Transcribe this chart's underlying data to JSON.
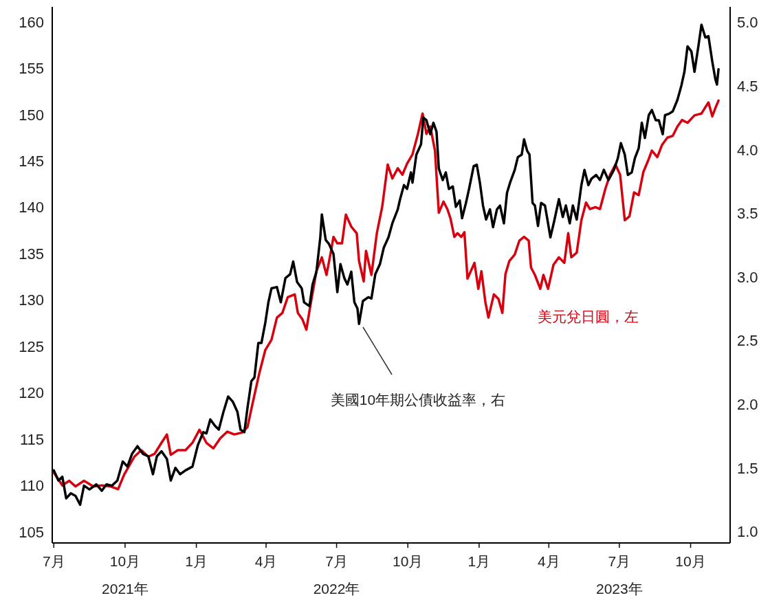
{
  "chart_data": {
    "type": "line",
    "xlim": [
      "2021-06-29",
      "2023-11-21"
    ],
    "xticks": [
      {
        "value": "2021-07-01",
        "label": "7月"
      },
      {
        "value": "2021-10-01",
        "label": "10月\n2021年"
      },
      {
        "value": "2022-01-01",
        "label": "1月"
      },
      {
        "value": "2022-04-01",
        "label": "4月"
      },
      {
        "value": "2022-07-01",
        "label": "7月\n2022年"
      },
      {
        "value": "2022-10-01",
        "label": "10月"
      },
      {
        "value": "2023-01-01",
        "label": "1月"
      },
      {
        "value": "2023-04-01",
        "label": "4月"
      },
      {
        "value": "2023-07-01",
        "label": "7月\n2023年"
      },
      {
        "value": "2023-10-01",
        "label": "10月"
      }
    ],
    "ylim": [
      103.8,
      161.6
    ],
    "yticks": [
      105,
      110,
      115,
      120,
      125,
      130,
      135,
      140,
      145,
      150,
      155,
      160
    ],
    "y2lim": [
      0.91,
      5.12
    ],
    "y2ticks": [
      {
        "value": 1,
        "label": "1.0"
      },
      {
        "value": 1.5,
        "label": "1.5"
      },
      {
        "value": 2,
        "label": "2.0"
      },
      {
        "value": 2.5,
        "label": "2.5"
      },
      {
        "value": 3,
        "label": "3.0"
      },
      {
        "value": 3.5,
        "label": "3.5"
      },
      {
        "value": 4,
        "label": "4.0"
      },
      {
        "value": 4.5,
        "label": "4.5"
      },
      {
        "value": 5,
        "label": "5.0"
      }
    ],
    "line_style": "solid",
    "series": [
      {
        "name": "美元兌日圓，左",
        "color": "#d7000f",
        "x": [
          "2021-07-01",
          "2021-07-12",
          "2021-07-21",
          "2021-07-29",
          "2021-08-09",
          "2021-08-21",
          "2021-09-01",
          "2021-09-12",
          "2021-09-22",
          "2021-09-30",
          "2021-10-13",
          "2021-10-22",
          "2021-10-31",
          "2021-11-08",
          "2021-11-17",
          "2021-11-24",
          "2021-11-29",
          "2021-12-08",
          "2021-12-18",
          "2021-12-27",
          "2022-01-05",
          "2022-01-14",
          "2022-01-23",
          "2022-02-01",
          "2022-02-10",
          "2022-02-19",
          "2022-03-01",
          "2022-03-08",
          "2022-03-15",
          "2022-03-23",
          "2022-03-31",
          "2022-04-08",
          "2022-04-15",
          "2022-04-22",
          "2022-04-29",
          "2022-05-08",
          "2022-05-12",
          "2022-05-18",
          "2022-05-23",
          "2022-05-29",
          "2022-06-05",
          "2022-06-12",
          "2022-06-18",
          "2022-06-23",
          "2022-06-27",
          "2022-07-02",
          "2022-07-08",
          "2022-07-13",
          "2022-07-20",
          "2022-07-27",
          "2022-07-30",
          "2022-08-05",
          "2022-08-08",
          "2022-08-15",
          "2022-08-22",
          "2022-08-29",
          "2022-09-05",
          "2022-09-11",
          "2022-09-18",
          "2022-09-24",
          "2022-09-30",
          "2022-10-07",
          "2022-10-14",
          "2022-10-20",
          "2022-10-25",
          "2022-10-30",
          "2022-11-05",
          "2022-11-10",
          "2022-11-16",
          "2022-11-21",
          "2022-11-25",
          "2022-11-30",
          "2022-12-04",
          "2022-12-09",
          "2022-12-13",
          "2022-12-17",
          "2022-12-26",
          "2022-12-31",
          "2023-01-04",
          "2023-01-09",
          "2023-01-13",
          "2023-01-20",
          "2023-01-26",
          "2023-01-31",
          "2023-02-04",
          "2023-02-09",
          "2023-02-16",
          "2023-02-22",
          "2023-02-28",
          "2023-03-06",
          "2023-03-09",
          "2023-03-14",
          "2023-03-21",
          "2023-03-25",
          "2023-03-31",
          "2023-04-07",
          "2023-04-14",
          "2023-04-21",
          "2023-04-26",
          "2023-04-30",
          "2023-05-07",
          "2023-05-13",
          "2023-05-19",
          "2023-05-24",
          "2023-05-31",
          "2023-06-06",
          "2023-06-13",
          "2023-06-19",
          "2023-06-26",
          "2023-07-02",
          "2023-07-08",
          "2023-07-14",
          "2023-07-20",
          "2023-07-26",
          "2023-08-01",
          "2023-08-07",
          "2023-08-12",
          "2023-08-19",
          "2023-08-25",
          "2023-09-01",
          "2023-09-08",
          "2023-09-14",
          "2023-09-20",
          "2023-09-27",
          "2023-10-06",
          "2023-10-15",
          "2023-10-24",
          "2023-10-29",
          "2023-11-02",
          "2023-11-06"
        ],
        "values": [
          111.4,
          110.0,
          110.5,
          109.9,
          110.5,
          109.9,
          110.0,
          109.9,
          109.6,
          111.2,
          113.1,
          113.8,
          113.1,
          113.4,
          114.6,
          115.5,
          113.3,
          113.8,
          113.8,
          114.6,
          116.0,
          114.6,
          114.0,
          115.1,
          115.8,
          115.5,
          115.7,
          116.3,
          119.0,
          122.0,
          124.6,
          125.7,
          128.1,
          128.6,
          130.3,
          130.6,
          128.6,
          127.9,
          126.8,
          129.8,
          133.1,
          134.6,
          132.7,
          134.9,
          136.8,
          136.1,
          136.1,
          139.2,
          137.9,
          137.2,
          134.2,
          132.0,
          135.3,
          132.7,
          137.2,
          140.1,
          144.6,
          143.1,
          144.2,
          143.5,
          144.7,
          145.7,
          147.9,
          150.1,
          147.9,
          148.7,
          146.1,
          139.4,
          140.6,
          139.8,
          138.8,
          136.8,
          137.2,
          136.8,
          137.3,
          132.3,
          134.0,
          131.2,
          133.1,
          129.8,
          128.1,
          130.6,
          130.1,
          128.6,
          132.8,
          134.2,
          134.9,
          136.4,
          136.8,
          136.4,
          133.5,
          132.7,
          131.2,
          132.7,
          131.2,
          133.8,
          134.6,
          134.0,
          137.2,
          134.6,
          135.1,
          138.6,
          140.5,
          139.8,
          140.0,
          139.8,
          142.0,
          143.5,
          144.6,
          143.5,
          138.6,
          139.0,
          141.6,
          141.3,
          143.8,
          145.0,
          146.1,
          145.4,
          146.7,
          147.5,
          147.7,
          148.7,
          149.4,
          149.1,
          149.9,
          150.1,
          151.3,
          149.8,
          150.7,
          151.5
        ]
      },
      {
        "name": "美國10年期公債收益率，右",
        "color": "#000000",
        "axis": "y2",
        "x": [
          "2021-07-01",
          "2021-07-07",
          "2021-07-12",
          "2021-07-17",
          "2021-07-23",
          "2021-07-29",
          "2021-08-04",
          "2021-08-09",
          "2021-08-16",
          "2021-08-25",
          "2021-09-01",
          "2021-09-07",
          "2021-09-14",
          "2021-09-21",
          "2021-09-28",
          "2021-10-04",
          "2021-10-10",
          "2021-10-17",
          "2021-10-24",
          "2021-10-31",
          "2021-11-06",
          "2021-11-11",
          "2021-11-17",
          "2021-11-24",
          "2021-11-29",
          "2021-12-05",
          "2021-12-11",
          "2021-12-18",
          "2021-12-27",
          "2022-01-03",
          "2022-01-10",
          "2022-01-14",
          "2022-01-19",
          "2022-01-25",
          "2022-01-30",
          "2022-02-05",
          "2022-02-11",
          "2022-02-17",
          "2022-02-23",
          "2022-02-27",
          "2022-03-04",
          "2022-03-08",
          "2022-03-13",
          "2022-03-17",
          "2022-03-22",
          "2022-03-26",
          "2022-03-31",
          "2022-04-04",
          "2022-04-08",
          "2022-04-15",
          "2022-04-20",
          "2022-04-26",
          "2022-05-02",
          "2022-05-06",
          "2022-05-11",
          "2022-05-17",
          "2022-05-20",
          "2022-05-27",
          "2022-05-31",
          "2022-06-05",
          "2022-06-10",
          "2022-06-12",
          "2022-06-17",
          "2022-06-21",
          "2022-06-27",
          "2022-07-02",
          "2022-07-06",
          "2022-07-11",
          "2022-07-15",
          "2022-07-20",
          "2022-07-24",
          "2022-07-28",
          "2022-07-30",
          "2022-08-04",
          "2022-08-11",
          "2022-08-15",
          "2022-08-20",
          "2022-08-26",
          "2022-08-31",
          "2022-09-06",
          "2022-09-11",
          "2022-09-18",
          "2022-09-21",
          "2022-09-26",
          "2022-09-30",
          "2022-10-05",
          "2022-10-07",
          "2022-10-12",
          "2022-10-18",
          "2022-10-21",
          "2022-10-25",
          "2022-10-30",
          "2022-11-03",
          "2022-11-07",
          "2022-11-10",
          "2022-11-15",
          "2022-11-19",
          "2022-11-23",
          "2022-11-28",
          "2022-12-02",
          "2022-12-07",
          "2022-12-10",
          "2022-12-15",
          "2022-12-19",
          "2022-12-25",
          "2022-12-29",
          "2023-01-02",
          "2023-01-06",
          "2023-01-10",
          "2023-01-15",
          "2023-01-19",
          "2023-01-24",
          "2023-01-28",
          "2023-02-02",
          "2023-02-06",
          "2023-02-10",
          "2023-02-16",
          "2023-02-20",
          "2023-02-25",
          "2023-02-28",
          "2023-03-04",
          "2023-03-07",
          "2023-03-11",
          "2023-03-14",
          "2023-03-18",
          "2023-03-22",
          "2023-03-27",
          "2023-03-31",
          "2023-04-03",
          "2023-04-08",
          "2023-04-14",
          "2023-04-19",
          "2023-04-23",
          "2023-04-28",
          "2023-05-02",
          "2023-05-07",
          "2023-05-13",
          "2023-05-17",
          "2023-05-22",
          "2023-05-26",
          "2023-06-01",
          "2023-06-06",
          "2023-06-11",
          "2023-06-17",
          "2023-06-24",
          "2023-06-29",
          "2023-07-03",
          "2023-07-08",
          "2023-07-12",
          "2023-07-17",
          "2023-07-21",
          "2023-07-26",
          "2023-07-30",
          "2023-08-03",
          "2023-08-08",
          "2023-08-12",
          "2023-08-17",
          "2023-08-21",
          "2023-08-26",
          "2023-08-29",
          "2023-09-03",
          "2023-09-08",
          "2023-09-14",
          "2023-09-19",
          "2023-09-23",
          "2023-09-27",
          "2023-10-02",
          "2023-10-06",
          "2023-10-11",
          "2023-10-15",
          "2023-10-20",
          "2023-10-24",
          "2023-10-29",
          "2023-11-02",
          "2023-11-04",
          "2023-11-06"
        ],
        "values": [
          1.48,
          1.4,
          1.43,
          1.26,
          1.3,
          1.28,
          1.21,
          1.36,
          1.33,
          1.37,
          1.32,
          1.37,
          1.36,
          1.4,
          1.55,
          1.51,
          1.61,
          1.67,
          1.61,
          1.59,
          1.45,
          1.59,
          1.63,
          1.57,
          1.4,
          1.5,
          1.45,
          1.48,
          1.51,
          1.68,
          1.78,
          1.77,
          1.88,
          1.83,
          1.8,
          1.94,
          2.06,
          2.02,
          1.94,
          1.8,
          1.78,
          1.97,
          2.18,
          2.21,
          2.48,
          2.48,
          2.64,
          2.8,
          2.91,
          2.92,
          2.8,
          2.99,
          3.02,
          3.12,
          2.96,
          2.91,
          2.8,
          2.77,
          2.94,
          3.04,
          3.31,
          3.49,
          3.29,
          3.26,
          3.18,
          2.88,
          3.1,
          2.99,
          2.94,
          3.04,
          2.8,
          2.75,
          2.63,
          2.81,
          2.84,
          2.83,
          3.02,
          3.1,
          3.23,
          3.31,
          3.42,
          3.53,
          3.61,
          3.72,
          3.69,
          3.82,
          3.74,
          3.96,
          4.04,
          4.25,
          4.23,
          4.12,
          4.21,
          4.14,
          3.85,
          3.76,
          3.82,
          3.69,
          3.71,
          3.55,
          3.6,
          3.46,
          3.58,
          3.69,
          3.87,
          3.88,
          3.74,
          3.56,
          3.45,
          3.53,
          3.39,
          3.53,
          3.56,
          3.42,
          3.66,
          3.74,
          3.84,
          3.94,
          3.96,
          4.08,
          3.99,
          3.96,
          3.58,
          3.56,
          3.4,
          3.58,
          3.56,
          3.42,
          3.31,
          3.44,
          3.61,
          3.47,
          3.56,
          3.42,
          3.56,
          3.45,
          3.72,
          3.84,
          3.72,
          3.77,
          3.8,
          3.76,
          3.84,
          3.76,
          3.84,
          3.93,
          4.05,
          3.96,
          3.8,
          3.82,
          3.93,
          4.01,
          4.21,
          4.09,
          4.27,
          4.31,
          4.23,
          4.23,
          4.12,
          4.27,
          4.28,
          4.3,
          4.39,
          4.5,
          4.61,
          4.81,
          4.77,
          4.61,
          4.81,
          4.98,
          4.88,
          4.89,
          4.69,
          4.55,
          4.51,
          4.63
        ]
      }
    ]
  }
}
